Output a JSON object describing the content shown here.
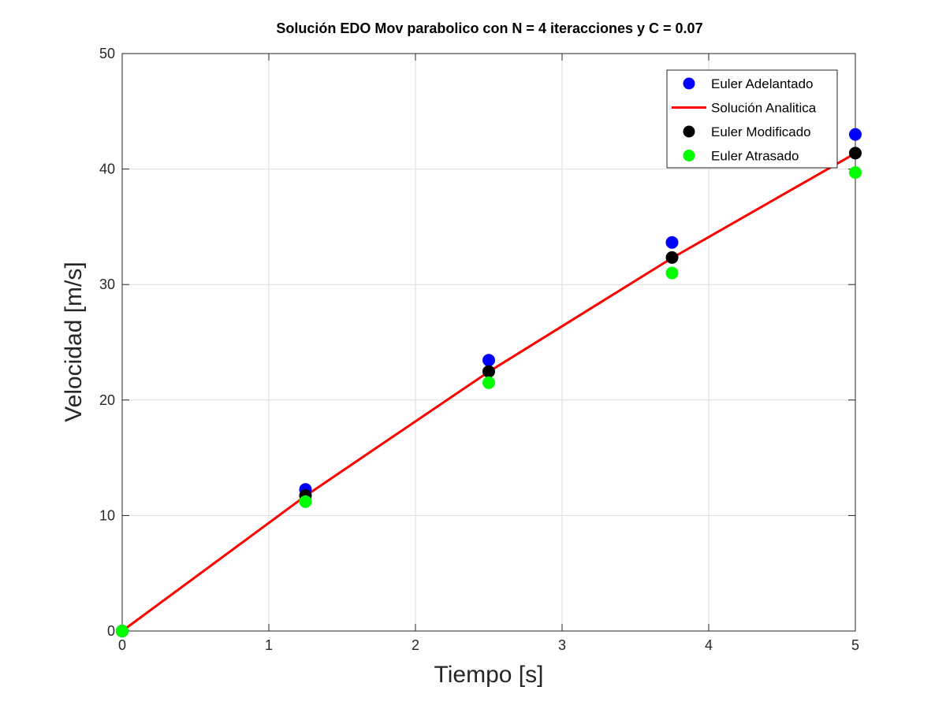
{
  "chart_data": {
    "type": "scatter",
    "title": "Solución EDO Mov parabolico con N = 4 iteracciones y  C = 0.07",
    "xlabel": "Tiempo [s]",
    "ylabel": "Velocidad [m/s]",
    "xlim": [
      0,
      5
    ],
    "ylim": [
      0,
      50
    ],
    "xticks": [
      "0",
      "1",
      "2",
      "3",
      "4",
      "5"
    ],
    "yticks": [
      "0",
      "10",
      "20",
      "30",
      "40",
      "50"
    ],
    "xtick_values": [
      0,
      1,
      2,
      3,
      4,
      5
    ],
    "ytick_values": [
      0,
      10,
      20,
      30,
      40,
      50
    ],
    "grid": true,
    "legend_position": "top-right",
    "x": [
      0,
      1.25,
      2.5,
      3.75,
      5
    ],
    "series": [
      {
        "name": "Euler Adelantado",
        "kind": "marker",
        "color": "#0000ff",
        "values": [
          0,
          12.26,
          23.45,
          33.65,
          43.0
        ]
      },
      {
        "name": "Solución Analitica",
        "kind": "line",
        "color": "#ff0000",
        "x": [
          0,
          1.25,
          2.5,
          3.75,
          5
        ],
        "values": [
          0,
          11.7,
          22.45,
          32.3,
          41.37
        ]
      },
      {
        "name": "Euler Modificado",
        "kind": "marker",
        "color": "#000000",
        "values": [
          0,
          11.72,
          22.47,
          32.34,
          41.38
        ]
      },
      {
        "name": "Euler Atrasado",
        "kind": "marker",
        "color": "#00ff00",
        "values": [
          0,
          11.2,
          21.5,
          31.0,
          39.7
        ]
      }
    ]
  }
}
